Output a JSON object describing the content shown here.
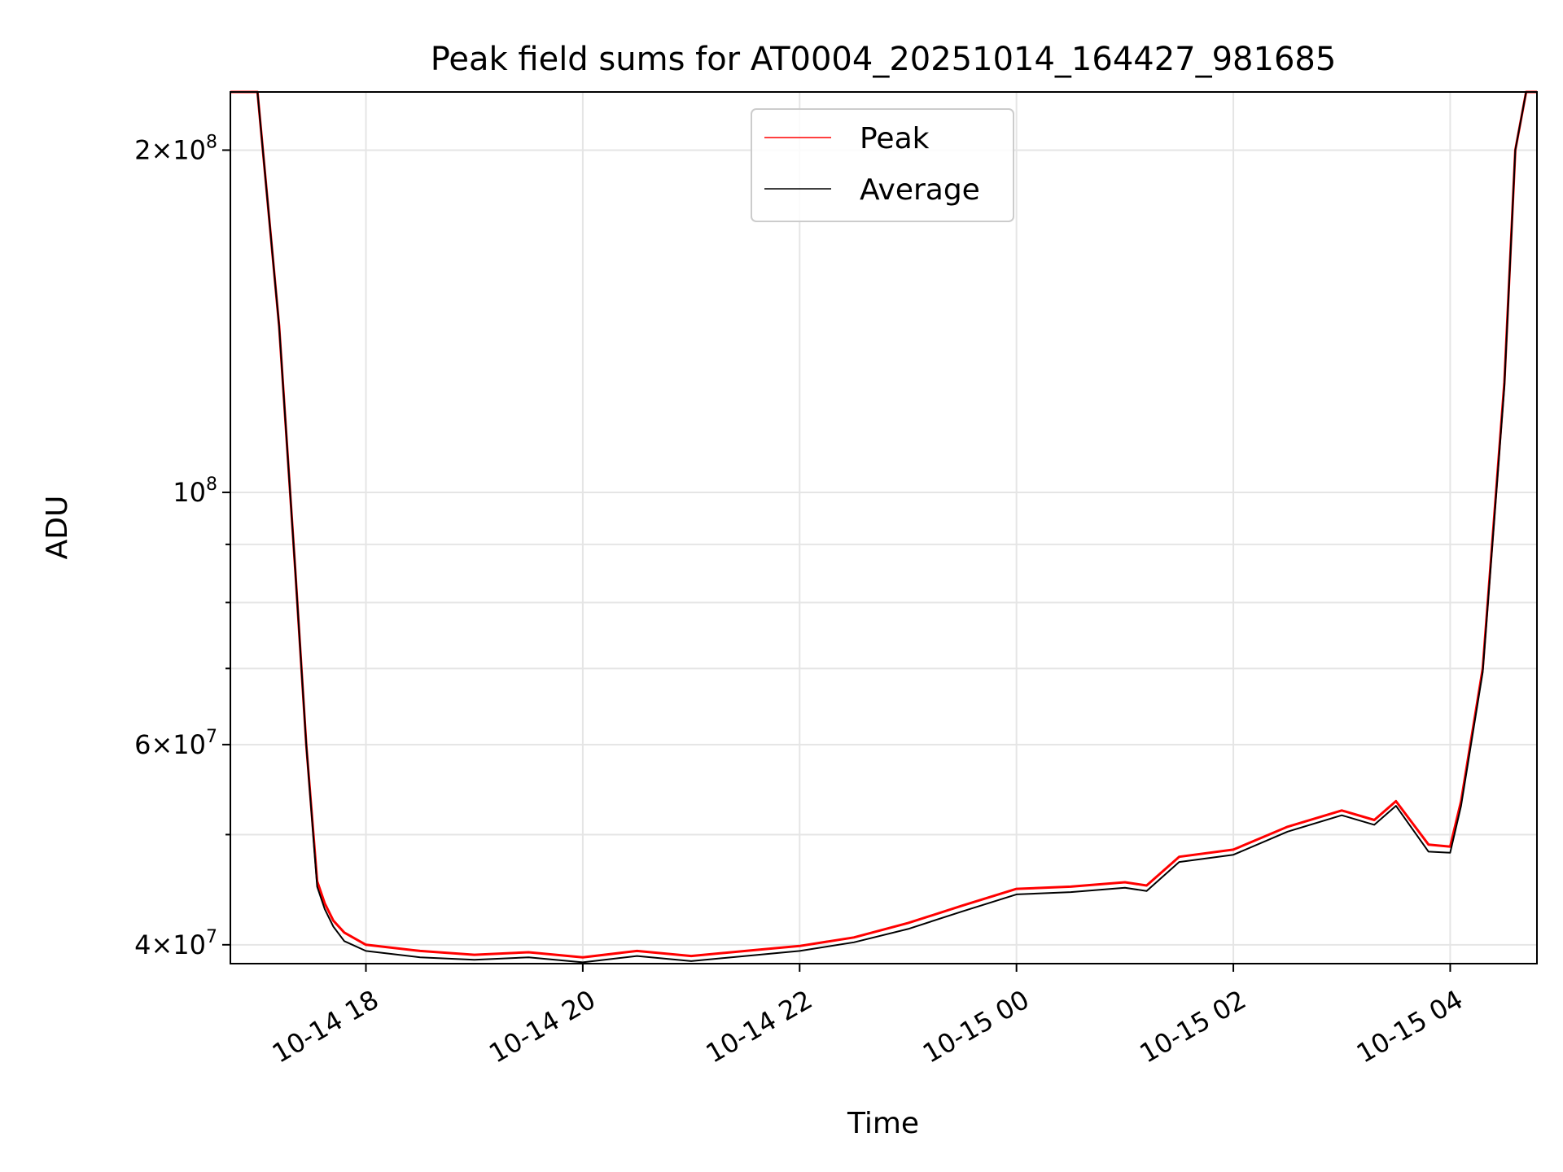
{
  "chart_data": {
    "type": "line",
    "title": "Peak field sums for AT0004_20251014_164427_981685",
    "xlabel": "Time",
    "ylabel": "ADU",
    "yscale": "log",
    "ylim": [
      38500000,
      225000000
    ],
    "xlim_hours": [
      16.75,
      28.8
    ],
    "grid": true,
    "legend_loc": "upper center",
    "x_ticks": [
      {
        "hours": 18,
        "label": "10-14 18"
      },
      {
        "hours": 20,
        "label": "10-14 20"
      },
      {
        "hours": 22,
        "label": "10-14 22"
      },
      {
        "hours": 24,
        "label": "10-15 00"
      },
      {
        "hours": 26,
        "label": "10-15 02"
      },
      {
        "hours": 28,
        "label": "10-15 04"
      }
    ],
    "y_major_ticks": [
      {
        "value": 40000000,
        "mant": "4",
        "exp": "7"
      },
      {
        "value": 60000000,
        "mant": "6",
        "exp": "7"
      },
      {
        "value": 100000000,
        "mant": "",
        "exp": "8"
      },
      {
        "value": 200000000,
        "mant": "2",
        "exp": "8"
      }
    ],
    "y_grid_values": [
      40000000,
      50000000,
      60000000,
      70000000,
      80000000,
      90000000,
      100000000,
      200000000
    ],
    "series": [
      {
        "name": "Peak",
        "color": "#ff0000",
        "x_hours": [
          16.75,
          17.0,
          17.2,
          17.35,
          17.45,
          17.55,
          17.62,
          17.7,
          17.8,
          18.0,
          18.5,
          19.0,
          19.5,
          20.0,
          20.5,
          21.0,
          21.5,
          22.0,
          22.5,
          23.0,
          23.5,
          24.0,
          24.5,
          25.0,
          25.2,
          25.5,
          26.0,
          26.5,
          27.0,
          27.3,
          27.5,
          27.8,
          28.0,
          28.1,
          28.3,
          28.5,
          28.6,
          28.7,
          28.8
        ],
        "values": [
          225000000,
          225000000,
          140000000,
          85000000,
          60000000,
          45500000,
          43500000,
          42000000,
          41000000,
          40000000,
          39500000,
          39200000,
          39400000,
          39000000,
          39500000,
          39100000,
          39500000,
          39900000,
          40600000,
          41800000,
          43300000,
          44800000,
          45000000,
          45400000,
          45100000,
          47800000,
          48500000,
          50800000,
          52500000,
          51500000,
          53500000,
          49000000,
          48800000,
          53500000,
          70000000,
          125000000,
          200000000,
          225000000,
          225000000
        ]
      },
      {
        "name": "Average",
        "color": "#000000",
        "x_hours": [
          16.75,
          17.0,
          17.2,
          17.35,
          17.45,
          17.55,
          17.62,
          17.7,
          17.8,
          18.0,
          18.5,
          19.0,
          19.5,
          20.0,
          20.5,
          21.0,
          21.5,
          22.0,
          22.5,
          23.0,
          23.5,
          24.0,
          24.5,
          25.0,
          25.2,
          25.5,
          26.0,
          26.5,
          27.0,
          27.3,
          27.5,
          27.8,
          28.0,
          28.1,
          28.3,
          28.5,
          28.6,
          28.7,
          28.8
        ],
        "values": [
          225000000,
          225000000,
          140000000,
          85000000,
          60000000,
          45000000,
          43000000,
          41500000,
          40300000,
          39500000,
          39000000,
          38800000,
          39000000,
          38600000,
          39100000,
          38700000,
          39100000,
          39500000,
          40200000,
          41300000,
          42800000,
          44300000,
          44500000,
          44900000,
          44600000,
          47300000,
          48000000,
          50300000,
          52000000,
          51000000,
          53000000,
          48300000,
          48200000,
          53000000,
          69500000,
          124000000,
          200000000,
          225000000,
          225000000
        ]
      }
    ]
  }
}
